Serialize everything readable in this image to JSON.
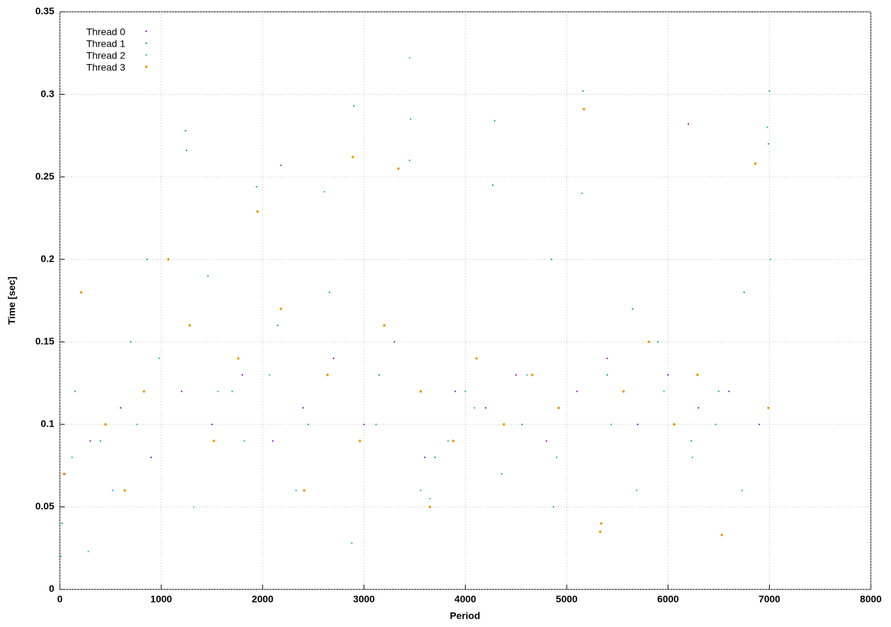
{
  "chart_data": {
    "type": "scatter",
    "xlabel": "Period",
    "ylabel": "Time [sec]",
    "xlim": [
      0,
      8000
    ],
    "ylim": [
      0,
      0.35
    ],
    "xticks": [
      0,
      1000,
      2000,
      3000,
      4000,
      5000,
      6000,
      7000,
      8000
    ],
    "yticks": [
      0,
      0.05,
      0.1,
      0.15,
      0.2,
      0.25,
      0.3,
      0.35
    ],
    "grid": true,
    "legend": "upper left",
    "series": [
      {
        "name": "Thread 0",
        "color": "#9400d3",
        "x": [
          50,
          300,
          600,
          900,
          1200,
          1500,
          1800,
          2100,
          2400,
          2700,
          3000,
          3300,
          3600,
          3900,
          4200,
          4500,
          4800,
          5100,
          5400,
          5700,
          6000,
          6300,
          6600,
          6900,
          2180,
          6200
        ],
        "y": [
          0.07,
          0.09,
          0.11,
          0.08,
          0.12,
          0.1,
          0.13,
          0.09,
          0.11,
          0.14,
          0.1,
          0.15,
          0.08,
          0.12,
          0.11,
          0.13,
          0.09,
          0.12,
          0.14,
          0.1,
          0.13,
          0.11,
          0.12,
          0.1,
          0.257,
          0.282
        ]
      },
      {
        "name": "Thread 1",
        "color": "#009e73",
        "x": [
          20,
          150,
          400,
          700,
          860,
          1240,
          1250,
          1460,
          1700,
          1940,
          2150,
          2450,
          2660,
          2900,
          3150,
          3450,
          3700,
          4000,
          4290,
          4270,
          4560,
          4850,
          5160,
          5400,
          5650,
          5900,
          6230,
          6500,
          6750,
          7000,
          6990,
          4870
        ],
        "y": [
          0.04,
          0.12,
          0.09,
          0.15,
          0.2,
          0.278,
          0.266,
          0.19,
          0.12,
          0.244,
          0.16,
          0.1,
          0.18,
          0.293,
          0.13,
          0.26,
          0.08,
          0.12,
          0.284,
          0.245,
          0.1,
          0.2,
          0.302,
          0.13,
          0.17,
          0.15,
          0.09,
          0.12,
          0.18,
          0.302,
          0.27,
          0.05
        ]
      },
      {
        "name": "Thread 2",
        "color": "#1fb2c8",
        "x": [
          10,
          120,
          280,
          520,
          760,
          980,
          1320,
          1560,
          1820,
          2070,
          2330,
          2610,
          2880,
          3120,
          3450,
          3460,
          3560,
          3830,
          4090,
          4360,
          4610,
          4900,
          5150,
          5440,
          5690,
          5960,
          6240,
          6470,
          6730,
          6980,
          7010,
          3650
        ],
        "y": [
          0.02,
          0.08,
          0.023,
          0.06,
          0.1,
          0.14,
          0.05,
          0.12,
          0.09,
          0.13,
          0.06,
          0.241,
          0.028,
          0.1,
          0.322,
          0.285,
          0.06,
          0.09,
          0.11,
          0.07,
          0.13,
          0.08,
          0.24,
          0.1,
          0.06,
          0.12,
          0.08,
          0.1,
          0.06,
          0.28,
          0.2,
          0.055
        ]
      },
      {
        "name": "Thread 3",
        "color": "#e69f00",
        "x": [
          40,
          210,
          450,
          640,
          830,
          1070,
          1280,
          1520,
          1760,
          1950,
          2180,
          2410,
          2640,
          2890,
          2960,
          3200,
          3340,
          3560,
          3650,
          3880,
          4110,
          4380,
          4660,
          4920,
          5170,
          5330,
          5560,
          5810,
          6060,
          6290,
          6530,
          6860,
          6990,
          5340
        ],
        "y": [
          0.07,
          0.18,
          0.1,
          0.06,
          0.12,
          0.2,
          0.16,
          0.09,
          0.14,
          0.229,
          0.17,
          0.06,
          0.13,
          0.262,
          0.09,
          0.16,
          0.255,
          0.12,
          0.05,
          0.09,
          0.14,
          0.1,
          0.13,
          0.11,
          0.291,
          0.035,
          0.12,
          0.15,
          0.1,
          0.13,
          0.033,
          0.258,
          0.11,
          0.04
        ]
      }
    ]
  }
}
